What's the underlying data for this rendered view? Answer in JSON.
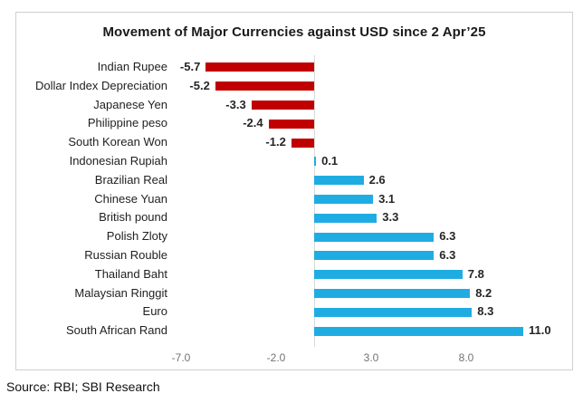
{
  "chart_data": {
    "type": "bar",
    "orientation": "horizontal",
    "title": "Movement of Major Currencies against USD since 2 Apr’25",
    "categories": [
      "Indian Rupee",
      "Dollar Index Depreciation",
      "Japanese Yen",
      "Philippine peso",
      "South Korean Won",
      "Indonesian Rupiah",
      "Brazilian Real",
      "Chinese Yuan",
      "British pound",
      "Polish Zloty",
      "Russian Rouble",
      "Thailand Baht",
      "Malaysian Ringgit",
      "Euro",
      "South African Rand"
    ],
    "values": [
      -5.7,
      -5.2,
      -3.3,
      -2.4,
      -1.2,
      0.1,
      2.6,
      3.1,
      3.3,
      6.3,
      6.3,
      7.8,
      8.2,
      8.3,
      11.0
    ],
    "value_labels": [
      "-5.7",
      "-5.2",
      "-3.3",
      "-2.4",
      "-1.2",
      "0.1",
      "2.6",
      "3.1",
      "3.3",
      "6.3",
      "6.3",
      "7.8",
      "8.2",
      "8.3",
      "11.0"
    ],
    "x_ticks": [
      -7,
      -2,
      3,
      8
    ],
    "x_tick_labels": [
      "-7.0",
      "-2.0",
      "3.0",
      "8.0"
    ],
    "xlim": [
      -8.6,
      13.6
    ],
    "ylabel": "",
    "xlabel": "",
    "legend": "none",
    "grid": "zero-axis-line-only",
    "colors": {
      "negative_bar": "#C00000",
      "positive_bar": "#1FACE3",
      "axis_line": "#d9d9d9",
      "tick_text": "#737373",
      "border": "#cfcfcf"
    }
  },
  "source_note": {
    "text": "Source: RBI; SBI Research"
  }
}
